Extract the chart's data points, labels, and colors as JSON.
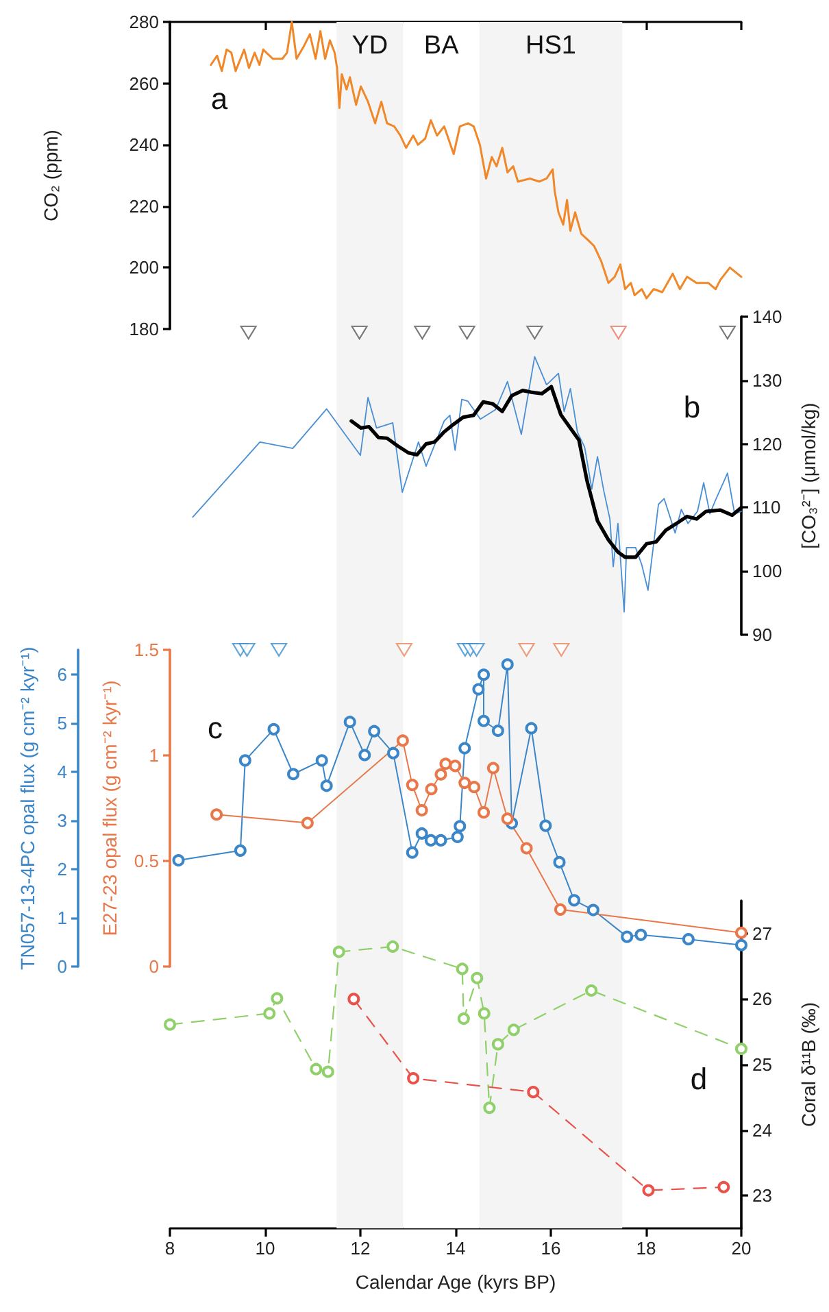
{
  "chart_data": [
    {
      "type": "line",
      "ylabel": "CO₂ (ppm)",
      "xlim": [
        8,
        20
      ],
      "xticks": [
        {
          "value": 8,
          "label": null
        },
        {
          "value": 10,
          "label": null
        },
        {
          "value": 12,
          "label": null
        },
        {
          "value": 14,
          "label": null
        },
        {
          "value": 16,
          "label": null
        },
        {
          "value": 18,
          "label": null
        },
        {
          "value": 20,
          "label": null
        }
      ],
      "ylim": [
        180,
        280
      ],
      "yticks": [
        180,
        200,
        220,
        240,
        260,
        280
      ],
      "tick_labels": "y",
      "marker": "none",
      "annotations": [
        "a"
      ],
      "bands": [
        {
          "axis": "x",
          "from": 11.5,
          "to": 12.9,
          "label": "YD",
          "color": "#f4f4f4"
        },
        {
          "axis": "x",
          "from": 12.9,
          "to": 14.5,
          "label": "BA",
          "color": "#ffffff"
        },
        {
          "axis": "x",
          "from": 14.5,
          "to": 17.5,
          "label": "HS1",
          "color": "#f4f4f4"
        }
      ],
      "series": [
        {
          "color": "#f0882a",
          "x": [
            8.86,
            8.99,
            9.09,
            9.19,
            9.29,
            9.38,
            9.56,
            9.66,
            9.78,
            9.88,
            9.96,
            10.16,
            10.36,
            10.46,
            10.56,
            10.66,
            10.81,
            10.94,
            11.06,
            11.16,
            11.26,
            11.36,
            11.46,
            11.51,
            11.56,
            11.61,
            11.71,
            11.78,
            11.91,
            12.01,
            12.16,
            12.31,
            12.44,
            12.56,
            12.71,
            12.84,
            12.96,
            13.11,
            13.21,
            13.36,
            13.48,
            13.61,
            13.76,
            13.96,
            14.09,
            14.26,
            14.38,
            14.51,
            14.64,
            14.76,
            14.86,
            14.98,
            15.09,
            15.21,
            15.31,
            15.56,
            15.76,
            15.91,
            16.04,
            16.08,
            16.16,
            16.26,
            16.34,
            16.41,
            16.51,
            16.64,
            16.78,
            16.91,
            17.06,
            17.21,
            17.34,
            17.46,
            17.56,
            17.68,
            17.76,
            17.91,
            18.01,
            18.16,
            18.34,
            18.56,
            18.71,
            18.86,
            19.06,
            19.31,
            19.46,
            19.56,
            19.76,
            20
          ],
          "values": [
            266,
            269,
            264,
            271,
            270,
            264,
            271,
            265,
            270,
            266,
            271,
            268,
            268,
            270,
            280,
            268,
            272,
            276,
            268,
            277,
            268,
            274,
            270,
            265,
            252,
            263,
            258,
            262,
            253,
            259,
            254,
            247,
            254,
            247,
            246,
            243,
            239,
            243,
            240,
            242,
            248,
            243,
            246,
            237,
            246,
            247,
            246,
            240,
            229,
            236,
            233,
            239,
            231,
            233,
            228,
            229,
            228,
            229,
            232,
            225,
            218,
            214,
            222,
            212,
            218,
            211,
            209,
            207,
            202,
            195,
            197,
            201,
            193,
            195,
            191,
            193,
            190,
            193,
            192,
            198,
            193,
            197,
            195,
            195,
            193,
            196,
            200,
            197
          ]
        }
      ]
    },
    {
      "type": "line",
      "ylabel": "[CO₃²⁻] (μmol/kg)",
      "xlim": [
        8,
        20
      ],
      "ylim": [
        90,
        140
      ],
      "yticks": [
        90,
        100,
        110,
        120,
        130,
        140
      ],
      "tick_labels": "y",
      "marker": "none",
      "annotations": [
        "b"
      ],
      "series": [
        {
          "color": "#4a8fd4",
          "x": [
            8.48,
            9.89,
            10.58,
            11.29,
            12.0,
            12.16,
            12.34,
            12.68,
            12.88,
            13.22,
            13.38,
            13.76,
            13.88,
            13.99,
            14.13,
            14.26,
            14.52,
            14.84,
            15.09,
            15.38,
            15.66,
            15.91,
            16.16,
            16.28,
            16.41,
            16.56,
            16.71,
            16.86,
            16.98,
            17.11,
            17.24,
            17.31,
            17.41,
            17.54,
            17.59,
            17.78,
            17.91,
            18.04,
            18.26,
            18.38,
            18.61,
            18.74,
            18.88,
            19.08,
            19.21,
            19.34,
            19.46,
            19.71,
            19.86,
            20
          ],
          "values": [
            108.5,
            120.3,
            119.3,
            125.5,
            118.2,
            127.3,
            122.5,
            123.3,
            112.4,
            120.3,
            116.5,
            123.6,
            124.5,
            119,
            127,
            126.7,
            123.9,
            125.4,
            129.8,
            121.5,
            133.7,
            129.3,
            131.1,
            125.1,
            128.7,
            121.8,
            119.5,
            112.9,
            118,
            112.7,
            108.2,
            100.7,
            107.5,
            93.6,
            103.7,
            103.7,
            101,
            97,
            110.5,
            111.4,
            106,
            109.7,
            107.5,
            109.4,
            113.9,
            109,
            111.2,
            115.4,
            109,
            109.4
          ]
        },
        {
          "color": "#000000",
          "x": [
            11.81,
            12.01,
            12.18,
            12.38,
            12.56,
            12.78,
            13.01,
            13.19,
            13.38,
            13.56,
            13.76,
            13.96,
            14.16,
            14.38,
            14.58,
            14.78,
            14.98,
            15.18,
            15.41,
            15.61,
            15.81,
            16.01,
            16.21,
            16.41,
            16.59,
            16.76,
            16.98,
            17.21,
            17.41,
            17.56,
            17.78,
            18.01,
            18.21,
            18.41,
            18.64,
            18.86,
            19.06,
            19.26,
            19.56,
            19.81,
            20
          ],
          "values": [
            123.6,
            122.5,
            122.7,
            121,
            120.9,
            119.7,
            118.6,
            118.3,
            120,
            120.3,
            121.9,
            123.1,
            124.2,
            124.5,
            126.6,
            126.3,
            125.1,
            127.6,
            128.4,
            128.1,
            127.9,
            129,
            124.6,
            122.5,
            120.6,
            114.2,
            107.9,
            104.9,
            103,
            102.2,
            102.2,
            104.3,
            104.6,
            106.4,
            107.5,
            108.6,
            108.2,
            109.4,
            109.6,
            108.8,
            110
          ]
        },
        {
          "type": "scatter",
          "marker": "triangle",
          "color": "#555555",
          "x": [
            9.65,
            11.98,
            13.3,
            14.24,
            15.66,
            19.71
          ],
          "values": [
            137.5,
            137.5,
            137.5,
            137.5,
            137.5,
            137.5
          ]
        },
        {
          "type": "scatter",
          "marker": "triangle",
          "color": "#e8735a",
          "x": [
            17.42
          ],
          "values": [
            137.5
          ]
        }
      ]
    },
    {
      "type": "line",
      "ylabel": "E27-23 opal flux (g cm⁻² kyr⁻¹)",
      "y2label": "TN057-13-4PC opal flux (g cm⁻² kyr⁻¹)",
      "xlim": [
        8,
        20
      ],
      "ylim": [
        0,
        1.5
      ],
      "yticks": [
        0,
        0.5,
        1,
        1.5
      ],
      "y2lim": [
        0,
        6.5
      ],
      "y2ticks": [
        0,
        1,
        2,
        3,
        4,
        5,
        6
      ],
      "tick_labels": "y",
      "marker": "circle",
      "annotations": [
        "c"
      ],
      "series": [
        {
          "axis": "y2",
          "color": "#3a86c8",
          "x": [
            8.18,
            9.48,
            9.58,
            10.18,
            10.59,
            11.19,
            11.29,
            11.78,
            12.09,
            12.29,
            12.69,
            13.09,
            13.29,
            13.48,
            13.69,
            14.04,
            14.09,
            14.19,
            14.48,
            14.59,
            14.59,
            14.89,
            15.09,
            15.18,
            15.59,
            15.89,
            16.18,
            16.49,
            16.89,
            17.6,
            17.89,
            18.89,
            20.0
          ],
          "values": [
            2.18,
            2.38,
            4.23,
            4.87,
            3.95,
            4.23,
            3.71,
            5.02,
            4.34,
            4.83,
            4.38,
            2.34,
            2.73,
            2.59,
            2.59,
            2.66,
            2.88,
            4.48,
            5.69,
            5.99,
            5.04,
            4.84,
            6.2,
            2.94,
            4.89,
            2.89,
            2.14,
            1.36,
            1.16,
            0.61,
            0.65,
            0.56,
            0.44
          ]
        },
        {
          "color": "#e8784a",
          "x": [
            8.98,
            10.89,
            12.89,
            13.09,
            13.29,
            13.49,
            13.69,
            13.79,
            13.99,
            14.19,
            14.39,
            14.59,
            14.79,
            15.09,
            15.49,
            16.2,
            20.0
          ],
          "values": [
            0.72,
            0.68,
            1.07,
            0.86,
            0.74,
            0.84,
            0.91,
            0.96,
            0.95,
            0.87,
            0.85,
            0.73,
            0.94,
            0.7,
            0.56,
            0.27,
            0.16
          ]
        },
        {
          "type": "scatter",
          "marker": "triangle",
          "color": "#3a8fd0",
          "x": [
            9.48,
            9.62,
            10.29,
            14.2,
            14.31,
            14.44
          ],
          "values": [
            1.5,
            1.5,
            1.5,
            1.5,
            1.5,
            1.5
          ]
        },
        {
          "type": "scatter",
          "marker": "triangle",
          "color": "#e8845a",
          "x": [
            12.92,
            15.49,
            16.22
          ],
          "values": [
            1.5,
            1.5,
            1.5
          ]
        }
      ]
    },
    {
      "type": "line",
      "xlabel": "Calendar Age (kyrs BP)",
      "ylabel": "Coral δ¹¹B (‰)",
      "xlim": [
        8,
        20
      ],
      "xticks": [
        8,
        10,
        12,
        14,
        16,
        18,
        20
      ],
      "ylim": [
        22.5,
        27.5
      ],
      "yticks": [
        23,
        24,
        25,
        26,
        27
      ],
      "marker": "circle",
      "line_style": "dashed",
      "annotations": [
        "d"
      ],
      "series": [
        {
          "color": "#8fd06a",
          "x": [
            8.0,
            10.09,
            10.25,
            11.07,
            11.32,
            11.55,
            12.68,
            14.14,
            14.17,
            14.45,
            14.6,
            14.71,
            14.89,
            15.22,
            16.85,
            20.0
          ],
          "values": [
            25.61,
            25.78,
            26.01,
            24.93,
            24.89,
            26.72,
            26.8,
            26.46,
            25.7,
            26.32,
            25.78,
            24.34,
            25.31,
            25.53,
            26.13,
            25.24
          ]
        },
        {
          "color": "#e8524a",
          "x": [
            11.86,
            13.11,
            15.63,
            18.05,
            19.63
          ],
          "values": [
            26.0,
            24.79,
            24.58,
            23.08,
            23.13
          ]
        }
      ]
    }
  ]
}
